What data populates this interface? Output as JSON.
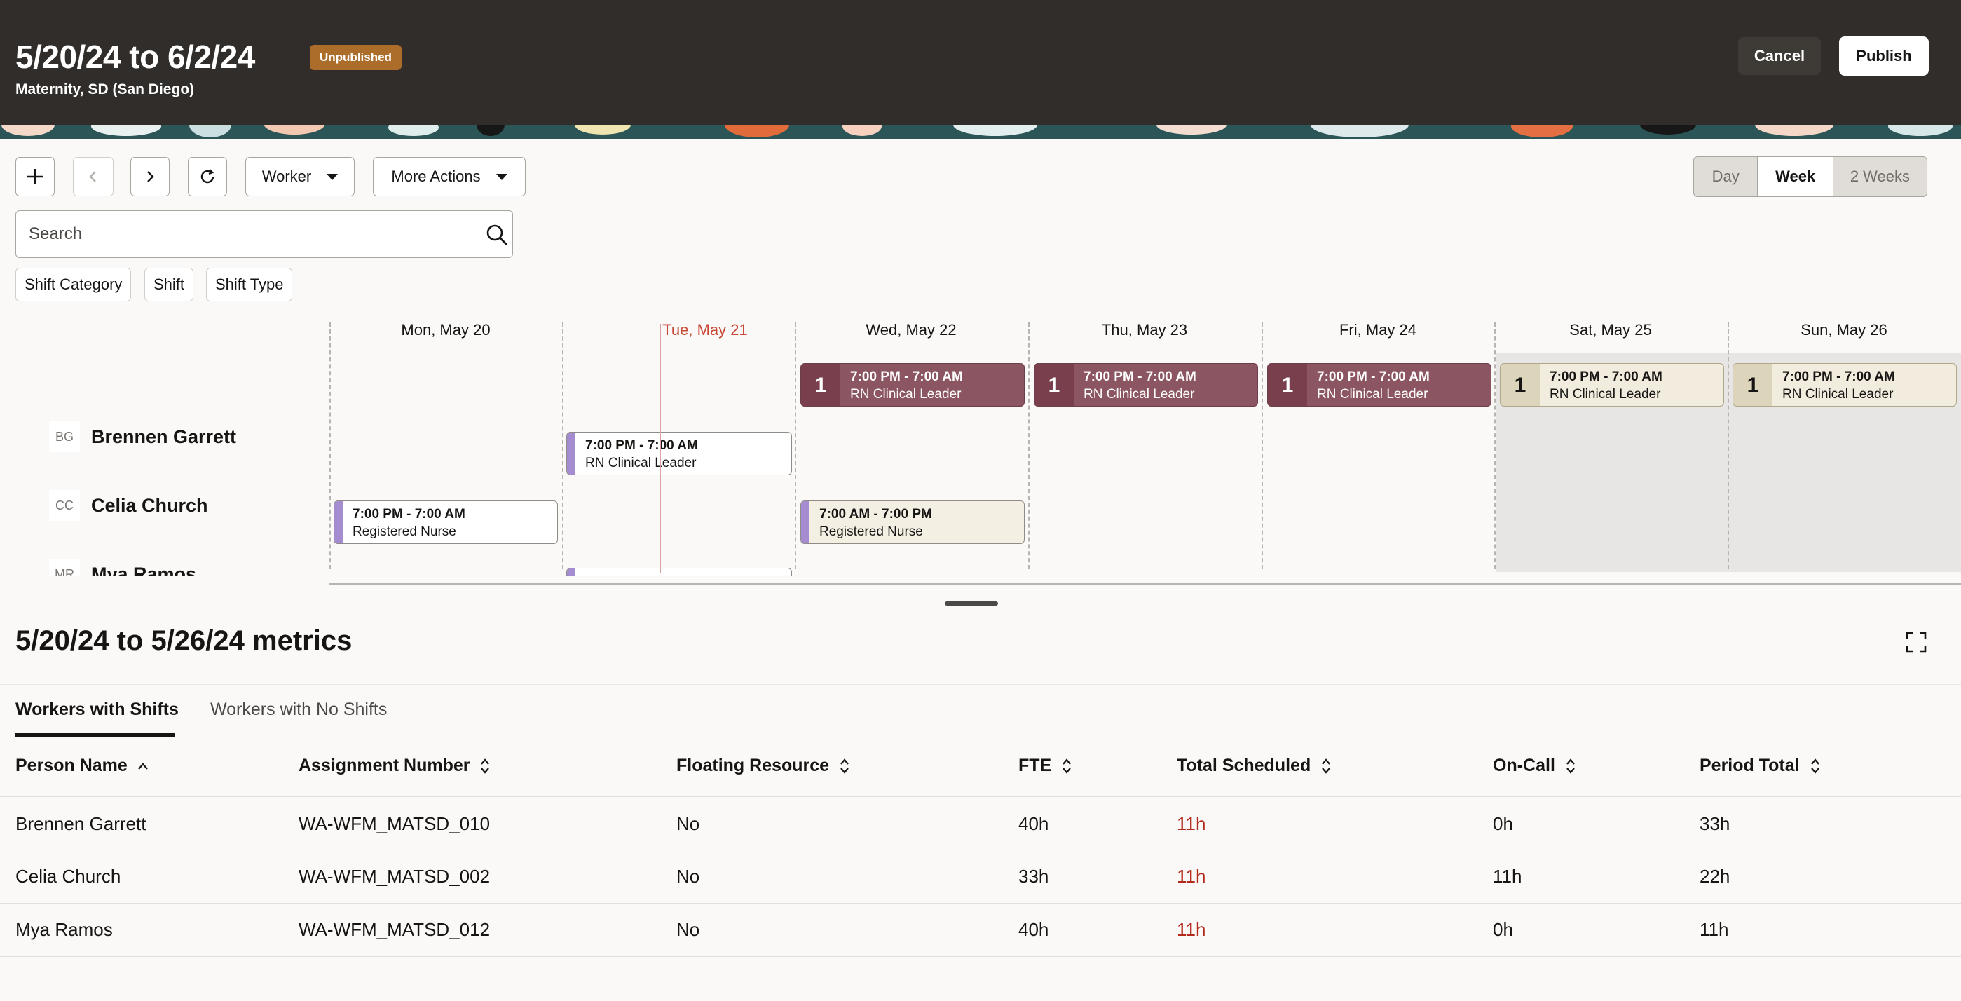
{
  "header": {
    "title": "5/20/24 to 6/2/24",
    "status_badge": "Unpublished",
    "subtitle": "Maternity, SD (San Diego)",
    "cancel_label": "Cancel",
    "publish_label": "Publish"
  },
  "toolbar": {
    "add_icon": "plus-icon",
    "prev_icon": "chevron-left-icon",
    "next_icon": "chevron-right-icon",
    "refresh_icon": "refresh-icon",
    "worker_dropdown": "Worker",
    "more_actions_dropdown": "More Actions",
    "views": [
      "Day",
      "Week",
      "2 Weeks"
    ],
    "active_view": "Week"
  },
  "search": {
    "placeholder": "Search",
    "value": ""
  },
  "filters": [
    "Shift Category",
    "Shift",
    "Type"
  ],
  "filter_labels": [
    "Shift Category",
    "Shift",
    "Shift Type"
  ],
  "schedule": {
    "days": [
      "Mon, May 20",
      "Tue, May 21",
      "Wed, May 22",
      "Thu, May 23",
      "Fri, May 24",
      "Sat, May 25",
      "Sun, May 26"
    ],
    "today": "Tue, May 21",
    "open_shifts": [
      {
        "day": "Wed, May 22",
        "count": "1",
        "time": "7:00 PM - 7:00 AM",
        "role": "RN Clinical Leader"
      },
      {
        "day": "Thu, May 23",
        "count": "1",
        "time": "7:00 PM - 7:00 AM",
        "role": "RN Clinical Leader"
      },
      {
        "day": "Fri, May 24",
        "count": "1",
        "time": "7:00 PM - 7:00 AM",
        "role": "RN Clinical Leader"
      },
      {
        "day": "Sat, May 25",
        "count": "1",
        "time": "7:00 PM - 7:00 AM",
        "role": "RN Clinical Leader"
      },
      {
        "day": "Sun, May 26",
        "count": "1",
        "time": "7:00 PM - 7:00 AM",
        "role": "RN Clinical Leader"
      }
    ],
    "workers": [
      {
        "initials": "BG",
        "name": "Brennen Garrett"
      },
      {
        "initials": "CC",
        "name": "Celia Church"
      },
      {
        "initials": "MR",
        "name": "Mya Ramos"
      }
    ],
    "assigned_shifts": [
      {
        "worker": "Brennen Garrett",
        "day": "Tue, May 21",
        "time": "7:00 PM - 7:00 AM",
        "role": "RN Clinical Leader"
      },
      {
        "worker": "Celia Church",
        "day": "Mon, May 20",
        "time": "7:00 PM - 7:00 AM",
        "role": "Registered Nurse"
      },
      {
        "worker": "Celia Church",
        "day": "Wed, May 22",
        "time": "7:00 AM - 7:00 PM",
        "role": "Registered Nurse"
      }
    ]
  },
  "metrics": {
    "title": "5/20/24 to 5/26/24 metrics",
    "tabs": [
      "Workers with Shifts",
      "Workers with No Shifts"
    ],
    "active_tab": "Workers with Shifts",
    "columns": [
      "Person Name",
      "Assignment Number",
      "Floating Resource",
      "FTE",
      "Total Scheduled",
      "On-Call",
      "Period Total"
    ],
    "rows": [
      [
        "Brennen Garrett",
        "WA-WFM_MATSD_010",
        "No",
        "40h",
        "11h",
        "0h",
        "33h"
      ],
      [
        "Celia Church",
        "WA-WFM_MATSD_002",
        "No",
        "33h",
        "11h",
        "11h",
        "22h"
      ],
      [
        "Mya Ramos",
        "WA-WFM_MATSD_012",
        "No",
        "40h",
        "11h",
        "0h",
        "11h"
      ]
    ]
  },
  "colors": {
    "header_bg": "#312d2a",
    "badge": "#ac6d2b",
    "open_shift_weekday": "#8b5562",
    "open_shift_weekend": "#f1ecdd",
    "assigned_accent": "#a58cd0",
    "today": "#c74634",
    "over_scheduled": "#b3291b"
  }
}
